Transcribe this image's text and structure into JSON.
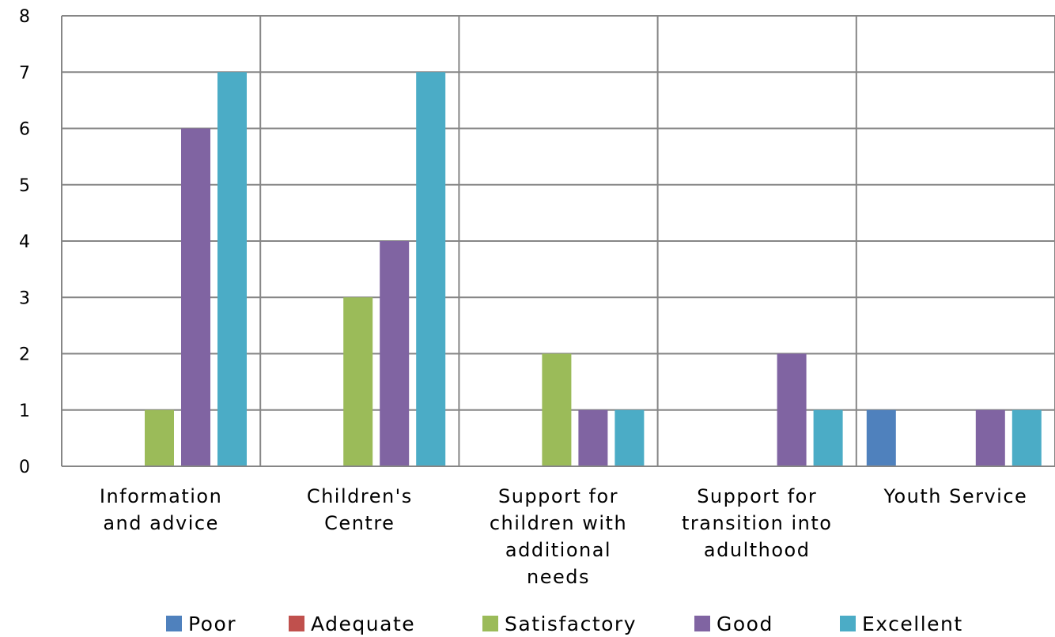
{
  "chart_data": {
    "type": "bar",
    "categories": [
      [
        "Information",
        "and advice"
      ],
      [
        "Children's",
        "Centre"
      ],
      [
        "Support for",
        "children with",
        "additional",
        "needs"
      ],
      [
        "Support for",
        "transition into",
        "adulthood"
      ],
      [
        "Youth Service"
      ]
    ],
    "series": [
      {
        "name": "Poor",
        "color": "#4F81BD",
        "values": [
          0,
          0,
          0,
          0,
          1
        ]
      },
      {
        "name": "Adequate",
        "color": "#C0504D",
        "values": [
          0,
          0,
          0,
          0,
          0
        ]
      },
      {
        "name": "Satisfactory",
        "color": "#9BBB59",
        "values": [
          1,
          3,
          2,
          0,
          0
        ]
      },
      {
        "name": "Good",
        "color": "#8064A2",
        "values": [
          6,
          4,
          1,
          2,
          1
        ]
      },
      {
        "name": "Excellent",
        "color": "#4BACC6",
        "values": [
          7,
          7,
          1,
          1,
          1
        ]
      }
    ],
    "ylim": [
      0,
      8
    ],
    "yticks": [
      "0",
      "1",
      "2",
      "3",
      "4",
      "5",
      "6",
      "7",
      "8"
    ],
    "grid": true,
    "legend_position": "bottom",
    "title": "",
    "xlabel": "",
    "ylabel": ""
  }
}
